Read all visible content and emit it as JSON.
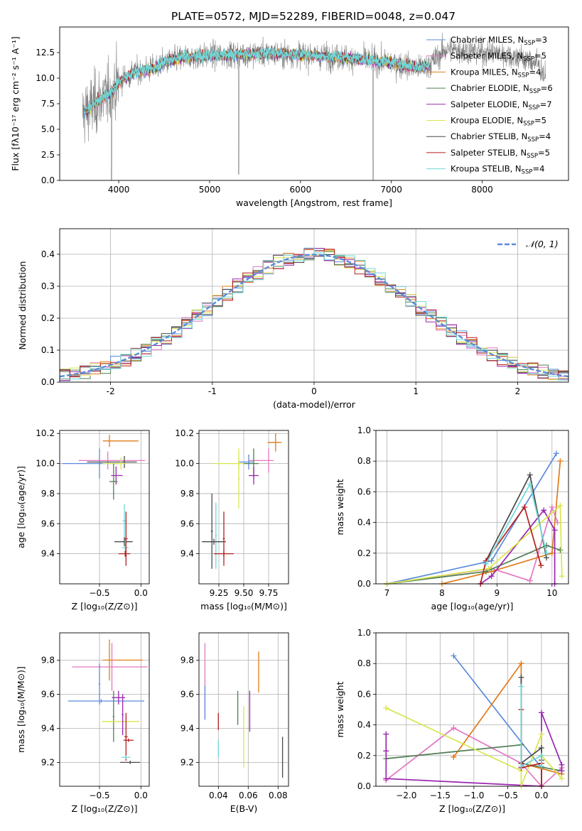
{
  "figure": {
    "title": "PLATE=0572, MJD=52289, FIBERID=0048, z=0.047"
  },
  "colors": {
    "chabrier_miles": "#5b8bd9",
    "salpeter_miles": "#e377c2",
    "kroupa_miles": "#e07b19",
    "chabrier_elodie": "#4f7f52",
    "salpeter_elodie": "#9a27b0",
    "kroupa_elodie": "#d8e64e",
    "chabrier_stelib": "#4a4a4a",
    "salpeter_stelib": "#b51f1f",
    "kroupa_stelib": "#6fd9d9",
    "observed": "#808080",
    "grid": "#b0b0b0"
  },
  "chart_data": [
    {
      "id": "spectrum",
      "type": "line",
      "xlabel": "wavelength [Angstrom, rest frame]",
      "ylabel": "Flux [fλ10⁻¹⁷ erg cm⁻² s⁻¹ A⁻¹]",
      "xlim": [
        3350,
        8950
      ],
      "ylim": [
        0,
        15
      ],
      "xticks": [
        4000,
        5000,
        6000,
        7000,
        8000
      ],
      "yticks": [
        0.0,
        2.5,
        5.0,
        7.5,
        10.0,
        12.5
      ],
      "legend_position": "top-right",
      "legend": [
        {
          "label": "Chabrier MILES, N",
          "sub": "SSP",
          "n": "=3",
          "color_key": "chabrier_miles"
        },
        {
          "label": "Salpeter MILES, N",
          "sub": "SSP",
          "n": "=5",
          "color_key": "salpeter_miles"
        },
        {
          "label": "Kroupa MILES, N",
          "sub": "SSP",
          "n": "=4",
          "color_key": "kroupa_miles"
        },
        {
          "label": "Chabrier ELODIE, N",
          "sub": "SSP",
          "n": "=6",
          "color_key": "chabrier_elodie"
        },
        {
          "label": "Salpeter ELODIE, N",
          "sub": "SSP",
          "n": "=7",
          "color_key": "salpeter_elodie"
        },
        {
          "label": "Kroupa ELODIE, N",
          "sub": "SSP",
          "n": "=5",
          "color_key": "kroupa_elodie"
        },
        {
          "label": "Chabrier STELIB, N",
          "sub": "SSP",
          "n": "=4",
          "color_key": "chabrier_stelib"
        },
        {
          "label": "Salpeter STELIB, N",
          "sub": "SSP",
          "n": "=5",
          "color_key": "salpeter_stelib"
        },
        {
          "label": "Kroupa STELIB, N",
          "sub": "SSP",
          "n": "=4",
          "color_key": "kroupa_stelib"
        }
      ],
      "continuum": {
        "x": [
          3600,
          3700,
          3800,
          3900,
          4000,
          4100,
          4200,
          4300,
          4400,
          4500,
          4700,
          5000,
          5300,
          5600,
          6000,
          6500,
          7000,
          7300,
          7400,
          7600,
          7800,
          8000,
          8200,
          8400,
          8600,
          8700
        ],
        "y": [
          6.5,
          7.2,
          8.0,
          8.4,
          9.6,
          10.2,
          10.6,
          10.8,
          11.0,
          11.5,
          12.0,
          12.2,
          12.3,
          12.4,
          12.3,
          12.0,
          11.5,
          11.0,
          11.2,
          12.8,
          12.7,
          12.5,
          12.4,
          12.0,
          11.5,
          10.0
        ]
      }
    },
    {
      "id": "residuals",
      "type": "histogram",
      "xlabel": "(data-model)/error",
      "ylabel": "Normed distribution",
      "xlim": [
        -2.5,
        2.5
      ],
      "ylim": [
        0,
        0.48
      ],
      "xticks": [
        -2,
        -1,
        0,
        1,
        2
      ],
      "yticks": [
        0.0,
        0.1,
        0.2,
        0.3,
        0.4
      ],
      "legend_label": "𝒩(0, 1)",
      "legend_position": "top-right",
      "normal_curve_color": "#5b8bd9",
      "bin_width": 0.1
    },
    {
      "id": "age_vs_Z",
      "type": "scatter",
      "xlabel": "Z [log₁₀(Z/Z⊙)]",
      "ylabel": "age  [log₁₀(age/yr)]",
      "xlim": [
        -0.98,
        0.1
      ],
      "ylim": [
        9.2,
        10.22
      ],
      "xticks": [
        -0.5,
        0.0
      ],
      "xtick_labels": [
        "−0.5",
        "0.0"
      ],
      "yticks": [
        9.4,
        9.6,
        9.8,
        10.0,
        10.2
      ],
      "points": [
        {
          "x": -0.5,
          "y": 10.0,
          "xerr": [
            0.45,
            0.25
          ],
          "yerr": 0.1,
          "color_key": "chabrier_miles"
        },
        {
          "x": -0.38,
          "y": 10.15,
          "xerr": [
            0.08,
            0.35
          ],
          "yerr": 0.04,
          "color_key": "kroupa_miles"
        },
        {
          "x": -0.4,
          "y": 10.02,
          "xerr": [
            0.35,
            0.45
          ],
          "yerr": 0.06,
          "color_key": "salpeter_miles"
        },
        {
          "x": -0.2,
          "y": 10.01,
          "xerr": [
            0.45,
            0.15
          ],
          "yerr": 0.04,
          "color_key": "chabrier_stelib"
        },
        {
          "x": -0.24,
          "y": 10.0,
          "xerr": [
            0.22,
            0.05
          ],
          "yerr": 0.04,
          "color_key": "kroupa_elodie"
        },
        {
          "x": -0.3,
          "y": 9.92,
          "xerr": [
            0.06,
            0.08
          ],
          "yerr": 0.06,
          "color_key": "salpeter_elodie"
        },
        {
          "x": -0.33,
          "y": 9.88,
          "xerr": [
            0.05,
            0.05
          ],
          "yerr": 0.12,
          "color_key": "chabrier_elodie"
        },
        {
          "x": -0.2,
          "y": 9.62,
          "xerr": [
            0.02,
            0.02
          ],
          "yerr": 0.11,
          "color_key": "kroupa_stelib"
        },
        {
          "x": -0.2,
          "y": 9.48,
          "xerr": [
            0.12,
            0.1
          ],
          "yerr": 0.03,
          "color_key": "chabrier_stelib"
        },
        {
          "x": -0.19,
          "y": 9.44,
          "xerr": [
            0.04,
            0.04
          ],
          "yerr": 0.06,
          "color_key": "kroupa_stelib"
        },
        {
          "x": -0.18,
          "y": 9.5,
          "xerr": [
            0.02,
            0.02
          ],
          "yerr": 0.18,
          "color_key": "salpeter_stelib"
        },
        {
          "x": -0.19,
          "y": 9.4,
          "xerr": [
            0.08,
            0.06
          ],
          "yerr": 0.02,
          "color_key": "salpeter_stelib"
        }
      ]
    },
    {
      "id": "age_vs_mass",
      "type": "scatter",
      "xlabel": "mass [log₁₀(M/M⊙)]",
      "xlim": [
        9.05,
        9.95
      ],
      "ylim": [
        9.2,
        10.22
      ],
      "xticks": [
        9.25,
        9.5,
        9.75
      ],
      "xtick_labels": [
        "9.25",
        "9.50",
        "9.75"
      ],
      "yticks": [
        9.4,
        9.6,
        9.8,
        10.0,
        10.2
      ],
      "points": [
        {
          "x": 9.82,
          "y": 10.14,
          "xerr": [
            0.08,
            0.06
          ],
          "yerr": 0.06,
          "color_key": "kroupa_miles"
        },
        {
          "x": 9.75,
          "y": 10.02,
          "xerr": [
            0.2,
            0.05
          ],
          "yerr": 0.08,
          "color_key": "salpeter_miles"
        },
        {
          "x": 9.55,
          "y": 10.01,
          "xerr": [
            0.1,
            0.05
          ],
          "yerr": 0.05,
          "color_key": "chabrier_miles"
        },
        {
          "x": 9.45,
          "y": 10.0,
          "xerr": [
            0.25,
            0.1
          ],
          "yerr": 0.04,
          "color_key": "kroupa_elodie"
        },
        {
          "x": 9.6,
          "y": 10.0,
          "xerr": [
            0.1,
            0.05
          ],
          "yerr": 0.1,
          "color_key": "chabrier_elodie"
        },
        {
          "x": 9.6,
          "y": 9.92,
          "xerr": [
            0.05,
            0.05
          ],
          "yerr": 0.06,
          "color_key": "salpeter_elodie"
        },
        {
          "x": 9.45,
          "y": 9.9,
          "xerr": [
            0.01,
            0.01
          ],
          "yerr": 0.2,
          "color_key": "kroupa_elodie"
        },
        {
          "x": 9.22,
          "y": 9.52,
          "xerr": [
            0.01,
            0.01
          ],
          "yerr": 0.22,
          "color_key": "kroupa_stelib"
        },
        {
          "x": 9.2,
          "y": 9.48,
          "xerr": [
            0.12,
            0.12
          ],
          "yerr": 0.02,
          "color_key": "chabrier_stelib"
        },
        {
          "x": 9.18,
          "y": 9.55,
          "xerr": [
            0.01,
            0.01
          ],
          "yerr": 0.25,
          "color_key": "chabrier_stelib"
        },
        {
          "x": 9.3,
          "y": 9.4,
          "xerr": [
            0.1,
            0.1
          ],
          "yerr": 0.02,
          "color_key": "salpeter_stelib"
        },
        {
          "x": 9.3,
          "y": 9.5,
          "xerr": [
            0.01,
            0.01
          ],
          "yerr": 0.18,
          "color_key": "salpeter_stelib"
        }
      ]
    },
    {
      "id": "weight_vs_age",
      "type": "line",
      "xlabel": "age  [log₁₀(age/yr)]",
      "ylabel": "mass weight",
      "xlim": [
        6.8,
        10.3
      ],
      "ylim": [
        0,
        1.0
      ],
      "xticks": [
        7,
        8,
        9,
        10
      ],
      "yticks": [
        0.0,
        0.2,
        0.4,
        0.6,
        0.8,
        1.0
      ],
      "series": [
        {
          "color_key": "chabrier_miles",
          "x": [
            7.0,
            8.9,
            10.08
          ],
          "y": [
            0.0,
            0.15,
            0.85
          ]
        },
        {
          "color_key": "salpeter_miles",
          "x": [
            7.0,
            8.9,
            9.6,
            10.0,
            10.1
          ],
          "y": [
            0.0,
            0.1,
            0.02,
            0.5,
            0.4
          ]
        },
        {
          "color_key": "kroupa_miles",
          "x": [
            8.0,
            8.9,
            10.0,
            10.15
          ],
          "y": [
            0.0,
            0.08,
            0.2,
            0.8
          ]
        },
        {
          "color_key": "chabrier_elodie",
          "x": [
            7.0,
            8.8,
            9.9,
            10.15
          ],
          "y": [
            0.0,
            0.08,
            0.25,
            0.22
          ]
        },
        {
          "color_key": "salpeter_elodie",
          "x": [
            8.7,
            8.9,
            9.85,
            10.05,
            10.05
          ],
          "y": [
            0.0,
            0.05,
            0.48,
            0.35,
            0.0
          ]
        },
        {
          "color_key": "kroupa_elodie",
          "x": [
            7.0,
            8.85,
            10.15,
            10.18
          ],
          "y": [
            0.0,
            0.1,
            0.51,
            0.05
          ]
        },
        {
          "color_key": "chabrier_stelib",
          "x": [
            8.8,
            9.6,
            9.9
          ],
          "y": [
            0.15,
            0.71,
            0.17
          ]
        },
        {
          "color_key": "salpeter_stelib",
          "x": [
            8.7,
            8.8,
            9.5,
            9.8
          ],
          "y": [
            0.0,
            0.15,
            0.5,
            0.12
          ]
        },
        {
          "color_key": "kroupa_stelib",
          "x": [
            8.8,
            9.6,
            9.9
          ],
          "y": [
            0.13,
            0.65,
            0.2
          ]
        }
      ]
    },
    {
      "id": "mass_vs_Z",
      "type": "scatter",
      "xlabel": "Z [log₁₀(Z/Z⊙)]",
      "ylabel": "mass [log₁₀(M/M⊙)]",
      "xlim": [
        -0.98,
        0.1
      ],
      "ylim": [
        9.06,
        9.96
      ],
      "xticks": [
        -0.5,
        0.0
      ],
      "xtick_labels": [
        "−0.5",
        "0.0"
      ],
      "yticks": [
        9.2,
        9.4,
        9.6,
        9.8
      ],
      "points": [
        {
          "x": -0.38,
          "y": 9.8,
          "xerr": [
            0.08,
            0.4
          ],
          "yerr": 0.12,
          "color_key": "kroupa_miles"
        },
        {
          "x": -0.35,
          "y": 9.76,
          "xerr": [
            0.48,
            0.43
          ],
          "yerr": 0.14,
          "color_key": "salpeter_miles"
        },
        {
          "x": -0.5,
          "y": 9.66,
          "xerr": [
            0.01,
            0.01
          ],
          "yerr": 0.12,
          "color_key": "chabrier_miles"
        },
        {
          "x": -0.48,
          "y": 9.56,
          "xerr": [
            0.4,
            0.52
          ],
          "yerr": 0.01,
          "color_key": "chabrier_miles"
        },
        {
          "x": -0.27,
          "y": 9.58,
          "xerr": [
            0.08,
            0.08
          ],
          "yerr": 0.04,
          "color_key": "salpeter_elodie"
        },
        {
          "x": -0.33,
          "y": 9.47,
          "xerr": [
            0.01,
            0.01
          ],
          "yerr": 0.15,
          "color_key": "chabrier_elodie"
        },
        {
          "x": -0.22,
          "y": 9.44,
          "xerr": [
            0.25,
            0.2
          ],
          "yerr": 0.01,
          "color_key": "kroupa_elodie"
        },
        {
          "x": -0.22,
          "y": 9.48,
          "xerr": [
            0.01,
            0.01
          ],
          "yerr": 0.12,
          "color_key": "salpeter_elodie"
        },
        {
          "x": -0.18,
          "y": 9.35,
          "xerr": [
            0.02,
            0.02
          ],
          "yerr": 0.14,
          "color_key": "salpeter_stelib"
        },
        {
          "x": -0.15,
          "y": 9.33,
          "xerr": [
            0.06,
            0.06
          ],
          "yerr": 0.01,
          "color_key": "salpeter_stelib"
        },
        {
          "x": -0.18,
          "y": 9.23,
          "xerr": [
            0.05,
            0.05
          ],
          "yerr": 0.01,
          "color_key": "kroupa_stelib"
        },
        {
          "x": -0.13,
          "y": 9.2,
          "xerr": [
            0.12,
            0.12
          ],
          "yerr": 0.01,
          "color_key": "chabrier_stelib"
        }
      ]
    },
    {
      "id": "mass_vs_ebv",
      "type": "scatter",
      "xlabel": "E(B-V)",
      "xlim": [
        0.027,
        0.087
      ],
      "ylim": [
        9.06,
        9.96
      ],
      "xticks": [
        0.04,
        0.06,
        0.08
      ],
      "xtick_labels": [
        "0.04",
        "0.06",
        "0.08"
      ],
      "yticks": [
        9.2,
        9.4,
        9.6,
        9.8
      ],
      "points": [
        {
          "x": 0.031,
          "y": 9.68,
          "yerr": 0.22,
          "color_key": "salpeter_miles"
        },
        {
          "x": 0.031,
          "y": 9.55,
          "yerr": 0.1,
          "color_key": "chabrier_miles"
        },
        {
          "x": 0.04,
          "y": 9.44,
          "yerr": 0.05,
          "color_key": "salpeter_stelib"
        },
        {
          "x": 0.04,
          "y": 9.28,
          "yerr": 0.05,
          "color_key": "kroupa_stelib"
        },
        {
          "x": 0.053,
          "y": 9.52,
          "yerr": 0.1,
          "color_key": "chabrier_elodie"
        },
        {
          "x": 0.057,
          "y": 9.35,
          "yerr": 0.18,
          "color_key": "kroupa_elodie"
        },
        {
          "x": 0.061,
          "y": 9.5,
          "yerr": 0.12,
          "color_key": "salpeter_elodie"
        },
        {
          "x": 0.067,
          "y": 9.73,
          "yerr": 0.12,
          "color_key": "kroupa_miles"
        },
        {
          "x": 0.083,
          "y": 9.23,
          "yerr": 0.12,
          "color_key": "chabrier_stelib"
        }
      ]
    },
    {
      "id": "weight_vs_Z",
      "type": "line",
      "xlabel": "Z [log₁₀(Z/Z⊙)]",
      "ylabel": "mass weight",
      "xlim": [
        -2.45,
        0.4
      ],
      "ylim": [
        0,
        1.0
      ],
      "xticks": [
        -2.0,
        -1.5,
        -1.0,
        -0.5,
        0.0
      ],
      "xtick_labels": [
        "−2.0",
        "−1.5",
        "−1.0",
        "−0.5",
        "0.0"
      ],
      "yticks": [
        0.0,
        0.2,
        0.4,
        0.6,
        0.8,
        1.0
      ],
      "series": [
        {
          "color_key": "chabrier_miles",
          "x": [
            -1.3,
            0.0,
            0.0
          ],
          "y": [
            0.85,
            0.12,
            0.0
          ]
        },
        {
          "color_key": "salpeter_miles",
          "x": [
            -2.3,
            -1.3,
            -0.3,
            0.0,
            0.3
          ],
          "y": [
            0.04,
            0.38,
            0.15,
            0.0,
            0.12
          ]
        },
        {
          "color_key": "kroupa_miles",
          "x": [
            -1.3,
            -0.3,
            -0.3,
            0.3
          ],
          "y": [
            0.19,
            0.8,
            0.15,
            0.08
          ]
        },
        {
          "color_key": "chabrier_elodie",
          "x": [
            -2.3,
            -0.3,
            -0.3,
            0.3
          ],
          "y": [
            0.18,
            0.27,
            0.15,
            0.1
          ]
        },
        {
          "color_key": "salpeter_elodie",
          "x": [
            -2.3,
            -2.3,
            -2.3,
            0.0,
            0.0,
            0.3,
            0.3
          ],
          "y": [
            0.34,
            0.23,
            0.05,
            0.0,
            0.48,
            0.14,
            0.1
          ]
        },
        {
          "color_key": "kroupa_elodie",
          "x": [
            -2.3,
            -0.3,
            -0.3,
            0.0,
            0.0,
            0.3
          ],
          "y": [
            0.51,
            0.1,
            0.0,
            0.34,
            0.2,
            0.05
          ]
        },
        {
          "color_key": "chabrier_stelib",
          "x": [
            -0.3,
            -0.3,
            0.0,
            0.0
          ],
          "y": [
            0.71,
            0.15,
            0.25,
            0.17
          ]
        },
        {
          "color_key": "salpeter_stelib",
          "x": [
            -0.3,
            -0.3,
            -0.3,
            0.0,
            0.0
          ],
          "y": [
            0.5,
            0.15,
            0.12,
            0.15,
            0.0
          ]
        },
        {
          "color_key": "kroupa_stelib",
          "x": [
            -0.3,
            -0.3,
            0.0,
            0.0
          ],
          "y": [
            0.65,
            0.13,
            0.2,
            0.13
          ]
        }
      ]
    }
  ]
}
